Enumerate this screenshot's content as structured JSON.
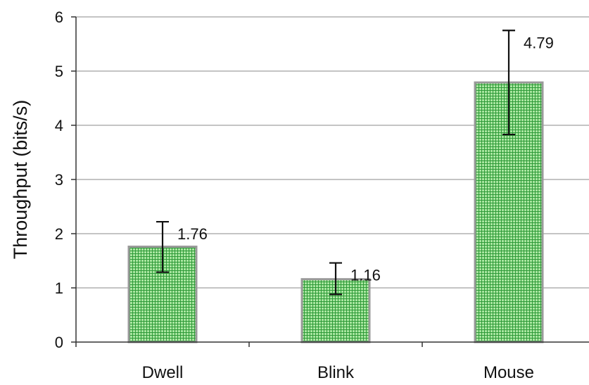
{
  "chart_data": {
    "type": "bar",
    "title": "",
    "xlabel": "",
    "ylabel": "Throughput (bits/s)",
    "categories": [
      "Dwell",
      "Blink",
      "Mouse"
    ],
    "values": [
      1.76,
      1.16,
      4.79
    ],
    "value_labels": [
      "1.76",
      "1.16",
      "4.79"
    ],
    "error_low": [
      1.29,
      0.88,
      3.83
    ],
    "error_high": [
      2.22,
      1.46,
      5.75
    ],
    "ylim": [
      0,
      6
    ],
    "yticks": [
      0,
      1,
      2,
      3,
      4,
      5,
      6
    ],
    "ytick_labels": [
      "0",
      "1",
      "2",
      "3",
      "4",
      "5",
      "6"
    ],
    "grid": true,
    "legend": "none",
    "colors": {
      "bar_fill": "#a9e6a0",
      "bar_hatch": "#2e9a38",
      "bar_border": "#9a9a9a",
      "gridline": "#888888",
      "axis": "#333333",
      "error_bar": "#111111"
    }
  }
}
